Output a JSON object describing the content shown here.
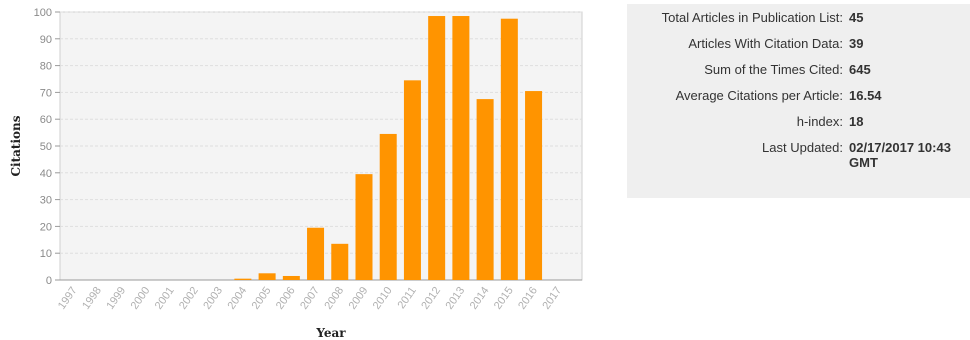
{
  "chart_data": {
    "type": "bar",
    "xlabel": "Year",
    "ylabel": "Citations",
    "ylim": [
      0,
      100
    ],
    "yticks": [
      0,
      10,
      20,
      30,
      40,
      50,
      60,
      70,
      80,
      90,
      100
    ],
    "grid": true,
    "color": "#FF9400",
    "categories": [
      "1997",
      "1998",
      "1999",
      "2000",
      "2001",
      "2002",
      "2003",
      "2004",
      "2005",
      "2006",
      "2007",
      "2008",
      "2009",
      "2010",
      "2011",
      "2012",
      "2013",
      "2014",
      "2015",
      "2016",
      "2017"
    ],
    "values": [
      0,
      0,
      0,
      0,
      0,
      0,
      0,
      0.5,
      2.5,
      1.5,
      19.5,
      13.5,
      39.5,
      54.5,
      74.5,
      98.5,
      98.5,
      67.5,
      97.5,
      70.5,
      0
    ]
  },
  "stats": [
    {
      "label": "Total Articles in Publication List:",
      "value": "45"
    },
    {
      "label": "Articles With Citation Data:",
      "value": "39"
    },
    {
      "label": "Sum of the Times Cited:",
      "value": "645"
    },
    {
      "label": "Average Citations per Article:",
      "value": "16.54"
    },
    {
      "label": "h-index:",
      "value": "18"
    },
    {
      "label": "Last Updated:",
      "value": "02/17/2017 10:43 GMT"
    }
  ]
}
